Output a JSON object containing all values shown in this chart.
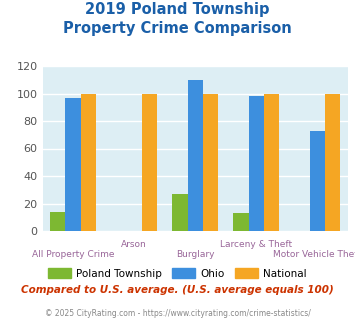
{
  "title_line1": "2019 Poland Township",
  "title_line2": "Property Crime Comparison",
  "categories": [
    "All Property Crime",
    "Arson",
    "Burglary",
    "Larceny & Theft",
    "Motor Vehicle Theft"
  ],
  "poland_values": [
    14,
    0,
    27,
    13,
    0
  ],
  "ohio_values": [
    97,
    0,
    110,
    98,
    73
  ],
  "national_values": [
    100,
    100,
    100,
    100,
    100
  ],
  "poland_color": "#7db832",
  "ohio_color": "#3d8fde",
  "national_color": "#f5a623",
  "bg_color": "#ddeef4",
  "ylim": [
    0,
    120
  ],
  "yticks": [
    0,
    20,
    40,
    60,
    80,
    100,
    120
  ],
  "legend_labels": [
    "Poland Township",
    "Ohio",
    "National"
  ],
  "footnote1": "Compared to U.S. average. (U.S. average equals 100)",
  "footnote2": "© 2025 CityRating.com - https://www.cityrating.com/crime-statistics/",
  "title_color": "#1a5fa8",
  "footnote1_color": "#cc3300",
  "footnote2_color": "#888888",
  "xlabel_color": "#996699",
  "bar_width": 0.25
}
